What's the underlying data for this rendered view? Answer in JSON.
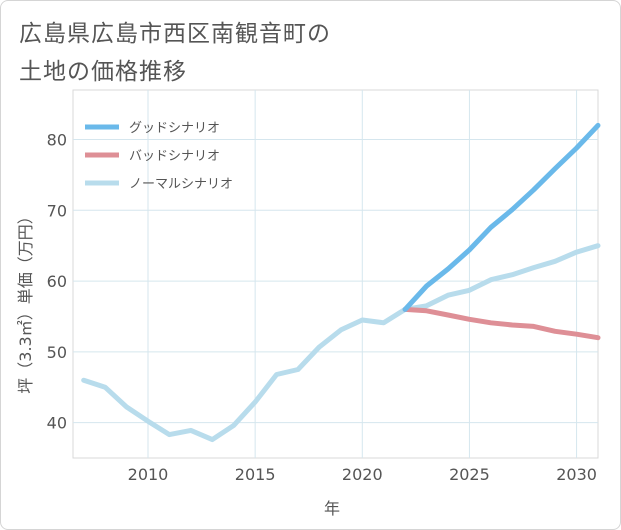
{
  "title": {
    "line1": "広島県広島市西区南観音町の",
    "line2": "土地の価格推移"
  },
  "chart_data": {
    "type": "line",
    "title": "広島県広島市西区南観音町の土地の価格推移",
    "xlabel": "年",
    "ylabel": "坪（3.3㎡）単価（万円）",
    "xlim": [
      2006.5,
      2031
    ],
    "ylim": [
      35,
      87
    ],
    "xticks": [
      2010,
      2015,
      2020,
      2025,
      2030
    ],
    "yticks": [
      40,
      50,
      60,
      70,
      80
    ],
    "grid": true,
    "legend_position": "top-left",
    "series": [
      {
        "name": "グッドシナリオ",
        "color": "#6ab9ea",
        "x": [
          2022,
          2023,
          2024,
          2025,
          2026,
          2027,
          2028,
          2029,
          2030,
          2031
        ],
        "y": [
          56.0,
          59.3,
          61.7,
          64.4,
          67.6,
          70.1,
          72.9,
          75.9,
          78.8,
          82.0
        ]
      },
      {
        "name": "バッドシナリオ",
        "color": "#de8f96",
        "x": [
          2022,
          2023,
          2024,
          2025,
          2026,
          2027,
          2028,
          2029,
          2030,
          2031
        ],
        "y": [
          56.0,
          55.8,
          55.2,
          54.6,
          54.1,
          53.8,
          53.6,
          52.9,
          52.5,
          52.0
        ]
      },
      {
        "name": "ノーマルシナリオ",
        "color": "#b8dcec",
        "x": [
          2007,
          2008,
          2009,
          2010,
          2011,
          2012,
          2013,
          2014,
          2015,
          2016,
          2017,
          2018,
          2019,
          2020,
          2021,
          2022,
          2023,
          2024,
          2025,
          2026,
          2027,
          2028,
          2029,
          2030,
          2031
        ],
        "y": [
          46.0,
          45.0,
          42.2,
          40.2,
          38.3,
          38.9,
          37.6,
          39.6,
          42.9,
          46.8,
          47.5,
          50.7,
          53.1,
          54.5,
          54.1,
          56.0,
          56.5,
          58.0,
          58.7,
          60.2,
          60.9,
          61.9,
          62.8,
          64.1,
          65.0
        ]
      }
    ]
  }
}
